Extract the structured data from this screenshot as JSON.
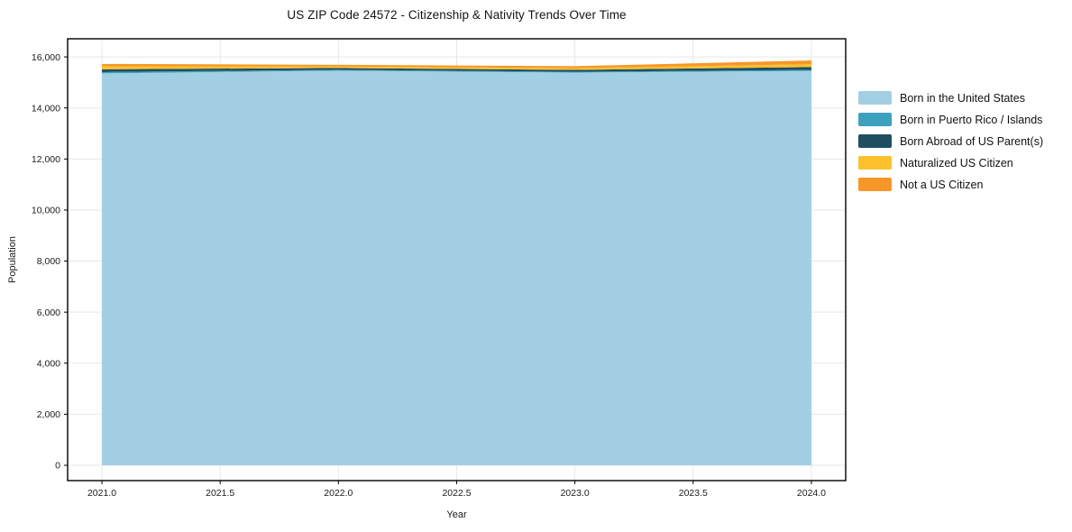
{
  "title": "US ZIP Code 24572 - Citizenship & Nativity Trends Over Time",
  "chart_data": {
    "type": "area",
    "stacked": true,
    "title": "US ZIP Code 24572 - Citizenship & Nativity Trends Over Time",
    "xlabel": "Year",
    "ylabel": "Population",
    "x": [
      2021,
      2022,
      2023,
      2024
    ],
    "series": [
      {
        "name": "Born in the United States",
        "color": "#A3CFE4",
        "values": [
          15355,
          15460,
          15385,
          15450
        ]
      },
      {
        "name": "Born in Puerto Rico / Islands",
        "color": "#3DA1BE",
        "values": [
          50,
          35,
          30,
          40
        ]
      },
      {
        "name": "Born Abroad of US Parent(s)",
        "color": "#1F4E61",
        "values": [
          110,
          70,
          75,
          110
        ]
      },
      {
        "name": "Naturalized US Citizen",
        "color": "#FCC12D",
        "values": [
          120,
          60,
          70,
          115
        ]
      },
      {
        "name": "Not a US Citizen",
        "color": "#F79728",
        "values": [
          90,
          65,
          75,
          145
        ]
      }
    ],
    "x_ticks": [
      "2021.0",
      "2021.5",
      "2022.0",
      "2022.5",
      "2023.0",
      "2023.5",
      "2024.0"
    ],
    "x_tick_values": [
      2021,
      2021.5,
      2022,
      2022.5,
      2023,
      2023.5,
      2024
    ],
    "y_ticks": [
      "0",
      "2,000",
      "4,000",
      "6,000",
      "8,000",
      "10,000",
      "12,000",
      "14,000",
      "16,000"
    ],
    "y_tick_values": [
      0,
      2000,
      4000,
      6000,
      8000,
      10000,
      12000,
      14000,
      16000
    ],
    "xlim": [
      2020.855,
      2024.145
    ],
    "ylim": [
      -600,
      16710
    ],
    "grid": true,
    "grid_color": "#e7e7e7",
    "axis_color": "#000000",
    "legend_position": "right"
  }
}
